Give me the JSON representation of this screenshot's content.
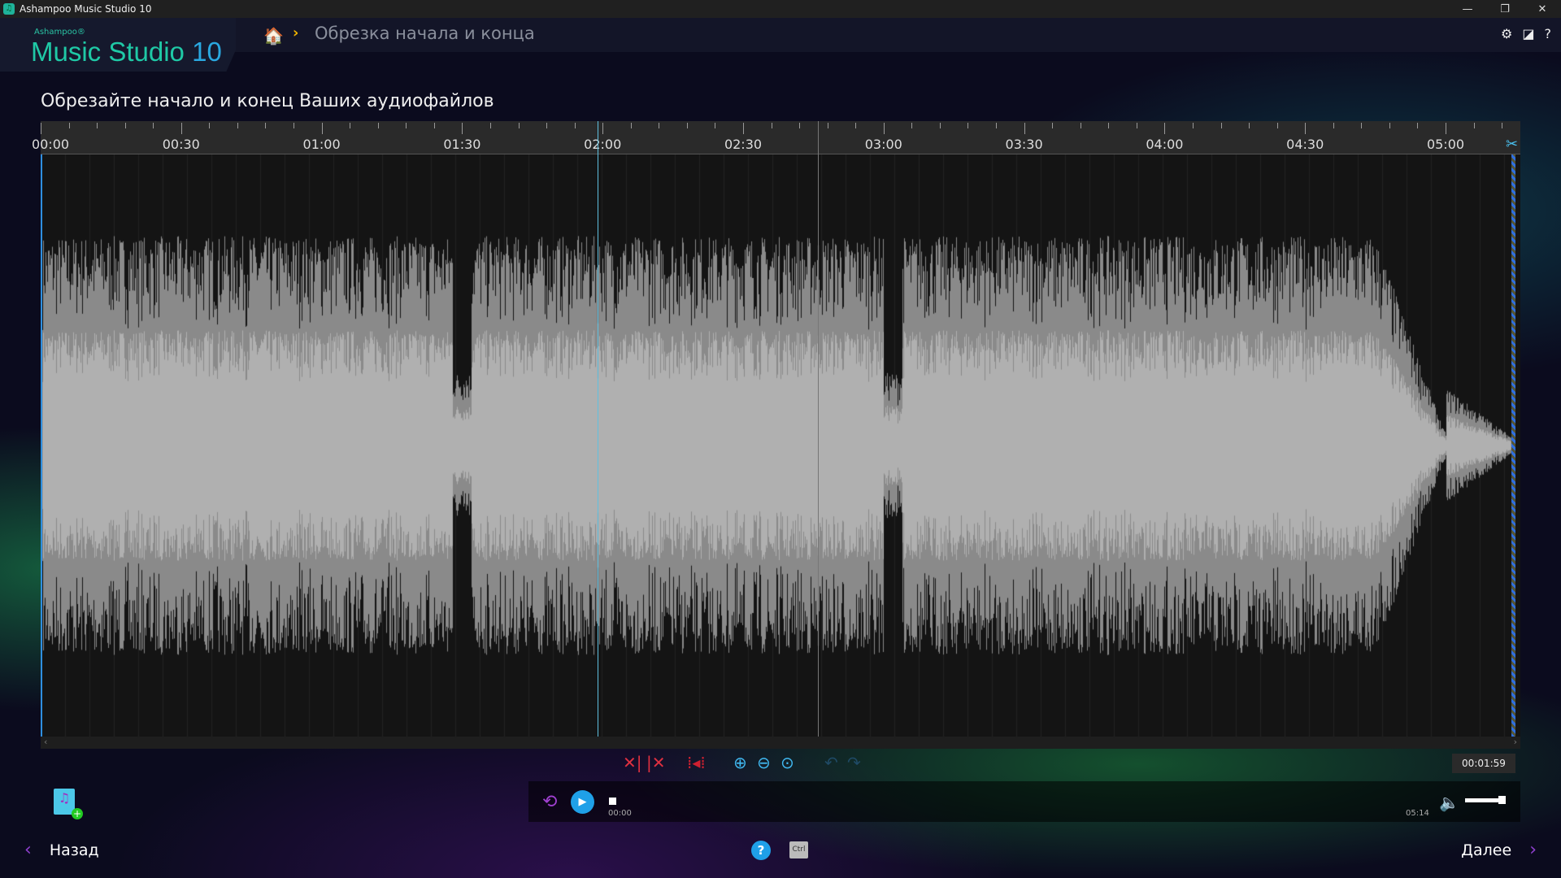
{
  "window": {
    "title": "Ashampoo Music Studio 10",
    "minimize": "—",
    "maximize": "❐",
    "close": "✕"
  },
  "logo": {
    "brand": "Ashampoo®",
    "product": "Music Studio",
    "version": "10"
  },
  "breadcrumb": {
    "current": "Обрезка начала и конца"
  },
  "header_icons": {
    "settings": "⚙",
    "skin": "◪",
    "help": "?"
  },
  "page_title": "Обрезайте начало и конец Ваших аудиофайлов",
  "ruler": {
    "labels": [
      "00:00",
      "00:30",
      "01:00",
      "01:30",
      "02:00",
      "02:30",
      "03:00",
      "03:30",
      "04:00",
      "04:30",
      "05:00"
    ]
  },
  "track": {
    "duration_s": 314,
    "playhead_s": 119,
    "hover_s": 166
  },
  "colors": {
    "accent": "#1fa0e8",
    "logo": "#1fc9a6",
    "waveform": "#b0b0b0",
    "purple": "#9040d0"
  },
  "toolbar": {
    "position": "00:01:59"
  },
  "transport": {
    "start": "00:00",
    "end": "05:14",
    "volume": 1.0
  },
  "nav": {
    "back": "Назад",
    "next": "Далее",
    "ctrl": "Ctrl",
    "help": "?"
  }
}
